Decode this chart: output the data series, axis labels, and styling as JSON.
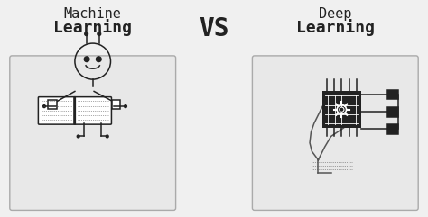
{
  "bg_color": "#f0f0f0",
  "box_color": "#e8e8e8",
  "box_edge_color": "#aaaaaa",
  "dark_color": "#222222",
  "line_color": "#555555",
  "title1_light": "Machine",
  "title1_bold": "Learning",
  "title2_light": "Deep",
  "title2_bold": "Learning",
  "vs_text": "VS",
  "light_font_size": 11,
  "bold_font_size": 13,
  "vs_font_size": 20
}
